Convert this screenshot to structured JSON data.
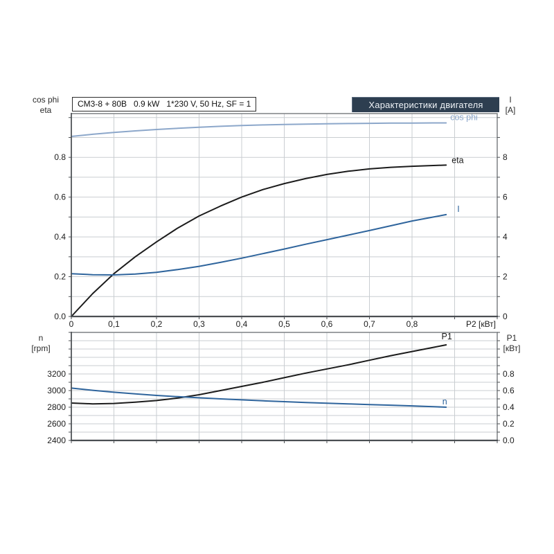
{
  "header": {
    "title": "Характеристики двигателя"
  },
  "info_box": {
    "text": "CM3-8 + 80B   0.9 kW   1*230 V, 50 Hz, SF = 1"
  },
  "axis_titles": {
    "top_left": [
      "cos phi",
      "eta"
    ],
    "top_right": [
      "I",
      "[A]"
    ],
    "bottom_left": [
      "n",
      "[rpm]"
    ],
    "bottom_right": [
      "P1",
      "[кВт]"
    ]
  },
  "colors": {
    "header_bg": "#2d3e50",
    "header_text": "#eef2f6",
    "curve_black": "#1b1b1b",
    "curve_blue": "#2e649c",
    "curve_lightblue": "#8ca7ca",
    "grid": "#c9cdd1",
    "frame": "#7d8184",
    "axis_dark": "#4a4e52",
    "tick_text": "#1b1b1b"
  },
  "chart_data": [
    {
      "type": "line",
      "title": "Характеристики двигателя",
      "x_axis": {
        "label": "P2 [кВт]",
        "min": 0,
        "max": 1.0,
        "grid_step": 0.1,
        "tick_step": 0.1,
        "tick_values": [
          0,
          0.1,
          0.2,
          0.3,
          0.4,
          0.5,
          0.6,
          0.7,
          0.8
        ],
        "tick_labels": [
          "0",
          "0,1",
          "0,2",
          "0,3",
          "0,4",
          "0,5",
          "0,6",
          "0,7",
          "0,8"
        ]
      },
      "left_axis": {
        "title": "cos phi / eta",
        "min": 0,
        "max": 1.02,
        "grid_step": 0.1,
        "tick_step": 0.1,
        "tick_values": [
          0,
          0.2,
          0.4,
          0.6,
          0.8
        ],
        "tick_labels": [
          "0.0",
          "0.2",
          "0.4",
          "0.6",
          "0.8"
        ]
      },
      "right_axis": {
        "title": "I [A]",
        "min": 0,
        "max": 10.2,
        "tick_step": 1,
        "tick_values": [
          0,
          2,
          4,
          6,
          8
        ],
        "tick_labels": [
          "0",
          "2",
          "4",
          "6",
          "8"
        ]
      },
      "x": [
        0,
        0.05,
        0.1,
        0.15,
        0.2,
        0.25,
        0.3,
        0.35,
        0.4,
        0.45,
        0.5,
        0.55,
        0.6,
        0.65,
        0.7,
        0.75,
        0.8,
        0.85,
        0.88
      ],
      "series": [
        {
          "name": "cos phi",
          "axis": "left",
          "color": "#8ca7ca",
          "values": [
            0.905,
            0.916,
            0.925,
            0.933,
            0.94,
            0.946,
            0.951,
            0.956,
            0.96,
            0.963,
            0.965,
            0.967,
            0.969,
            0.97,
            0.971,
            0.972,
            0.972,
            0.973,
            0.973
          ]
        },
        {
          "name": "eta",
          "axis": "left",
          "color": "#1b1b1b",
          "values": [
            0,
            0.115,
            0.215,
            0.3,
            0.375,
            0.445,
            0.505,
            0.555,
            0.6,
            0.638,
            0.668,
            0.693,
            0.714,
            0.73,
            0.742,
            0.75,
            0.755,
            0.759,
            0.761
          ]
        },
        {
          "name": "I",
          "axis": "right",
          "color": "#2e649c",
          "values": [
            2.15,
            2.1,
            2.09,
            2.13,
            2.22,
            2.36,
            2.52,
            2.72,
            2.93,
            3.16,
            3.39,
            3.63,
            3.86,
            4.09,
            4.32,
            4.56,
            4.8,
            5.0,
            5.12
          ]
        }
      ]
    },
    {
      "type": "line",
      "title": "",
      "x_axis": {
        "label": "",
        "min": 0,
        "max": 1.0,
        "grid_step": 0.1,
        "tick_step": 0.1,
        "tick_values": [],
        "tick_labels": []
      },
      "left_axis": {
        "title": "n [rpm]",
        "min": 2400,
        "max": 3700,
        "grid_step": 100,
        "tick_step": 100,
        "tick_values": [
          2400,
          2600,
          2800,
          3000,
          3200
        ],
        "tick_labels": [
          "2400",
          "2600",
          "2800",
          "3000",
          "3200"
        ]
      },
      "right_axis": {
        "title": "P1 [кВт]",
        "min": 0,
        "max": 1.3,
        "tick_step": 0.1,
        "tick_values": [
          0,
          0.2,
          0.4,
          0.6,
          0.8
        ],
        "tick_labels": [
          "0.0",
          "0.2",
          "0.4",
          "0.6",
          "0.8"
        ]
      },
      "x": [
        0,
        0.05,
        0.1,
        0.15,
        0.2,
        0.25,
        0.3,
        0.35,
        0.4,
        0.45,
        0.5,
        0.55,
        0.6,
        0.65,
        0.7,
        0.75,
        0.8,
        0.85,
        0.88
      ],
      "series": [
        {
          "name": "P1",
          "axis": "right",
          "color": "#1b1b1b",
          "values": [
            0.45,
            0.44,
            0.445,
            0.46,
            0.48,
            0.51,
            0.55,
            0.6,
            0.65,
            0.7,
            0.755,
            0.81,
            0.86,
            0.91,
            0.965,
            1.02,
            1.07,
            1.12,
            1.15
          ]
        },
        {
          "name": "n",
          "axis": "left",
          "color": "#2e649c",
          "values": [
            3030,
            3003,
            2980,
            2960,
            2942,
            2927,
            2913,
            2900,
            2888,
            2877,
            2867,
            2857,
            2848,
            2840,
            2832,
            2824,
            2816,
            2806,
            2800
          ]
        }
      ]
    }
  ]
}
